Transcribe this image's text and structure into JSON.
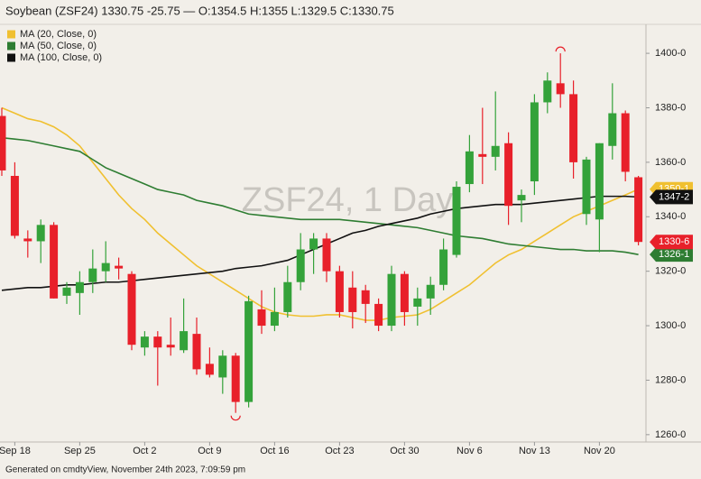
{
  "chart_data": {
    "type": "candlestick",
    "title": "Soybean (ZSF24) 1330.75 -25.75 — O:1354.5 H:1355 L:1329.5 C:1330.75",
    "watermark": "ZSF24, 1 Day",
    "footer": "Generated on cmdtyView, November 24th 2023, 7:09:59 pm",
    "categories": [
      null,
      "Sep 18",
      null,
      null,
      null,
      null,
      "Sep 25",
      null,
      null,
      null,
      null,
      "Oct 2",
      null,
      null,
      null,
      null,
      "Oct 9",
      null,
      null,
      null,
      null,
      "Oct 16",
      null,
      null,
      null,
      null,
      "Oct 23",
      null,
      null,
      null,
      null,
      "Oct 30",
      null,
      null,
      null,
      null,
      "Nov 6",
      null,
      null,
      null,
      null,
      "Nov 13",
      null,
      null,
      null,
      null,
      "Nov 20",
      null,
      null,
      null
    ],
    "open": [
      1377,
      1355,
      1332,
      1331,
      1337,
      1311,
      1312,
      1316,
      1320,
      1322,
      1319,
      1292,
      1296,
      1293,
      1291,
      1297,
      1286,
      1281,
      1289,
      1272,
      1306,
      1300,
      1305,
      1316,
      1328,
      1332,
      1320,
      1314,
      1313,
      1308,
      1300,
      1319,
      1307,
      1310,
      1315,
      1326,
      1352,
      1363,
      1362,
      1367,
      1346,
      1353,
      1382,
      1389,
      1385,
      1341,
      1339,
      1366,
      1378,
      1354.5
    ],
    "high": [
      1380,
      1360,
      1335,
      1339,
      1338,
      1316,
      1320,
      1328,
      1331,
      1325,
      1320,
      1298,
      1298,
      1303,
      1310,
      1303,
      1292,
      1291,
      1290,
      1311,
      1313,
      1314,
      1322,
      1334,
      1334,
      1334,
      1322,
      1320,
      1315,
      1310,
      1322,
      1320,
      1314,
      1318,
      1332,
      1353,
      1370,
      1380,
      1386,
      1371,
      1350,
      1385,
      1393,
      1400,
      1390,
      1362,
      1367,
      1389,
      1379,
      1355
    ],
    "low": [
      1355,
      1332,
      1325,
      1323,
      1310,
      1308,
      1304,
      1312,
      1316,
      1317,
      1291,
      1289,
      1278,
      1289,
      1290,
      1282,
      1281,
      1275,
      1268,
      1270,
      1297,
      1298,
      1303,
      1313,
      1319,
      1316,
      1303,
      1299,
      1301,
      1298,
      1298,
      1300,
      1300,
      1304,
      1313,
      1325,
      1349,
      1352,
      1357,
      1337,
      1338,
      1348,
      1378,
      1380,
      1354,
      1337,
      1327,
      1361,
      1353,
      1329.5
    ],
    "close": [
      1357,
      1333,
      1331,
      1337,
      1310,
      1314,
      1316,
      1321,
      1323,
      1321,
      1293,
      1296,
      1292,
      1292,
      1298,
      1284,
      1282,
      1289,
      1272,
      1309,
      1300,
      1305,
      1316,
      1328,
      1332,
      1320,
      1305,
      1305,
      1308,
      1300,
      1319,
      1305,
      1310,
      1315,
      1328,
      1351,
      1364,
      1362,
      1366,
      1344,
      1348,
      1382,
      1390,
      1385,
      1360,
      1361,
      1367,
      1378,
      1356.5,
      1330.75
    ],
    "last_label": "1330-6",
    "up_color": "#34a23a",
    "down_color": "#e8202a",
    "overlays": [
      {
        "name": "MA (20, Close, 0)",
        "color": "#f0c030",
        "last_label": "1350-1",
        "values": [
          1380,
          1378,
          1376,
          1375,
          1373,
          1370,
          1366,
          1360,
          1354,
          1348,
          1343,
          1339,
          1334,
          1330,
          1326,
          1322,
          1319,
          1316,
          1313,
          1310,
          1307,
          1305,
          1304,
          1303.5,
          1303.5,
          1304,
          1304,
          1303,
          1302,
          1302,
          1303,
          1303.5,
          1304,
          1306,
          1309,
          1312,
          1315,
          1319,
          1323,
          1326,
          1328,
          1331,
          1334,
          1337,
          1340,
          1342,
          1344,
          1346,
          1348,
          1350.125
        ]
      },
      {
        "name": "MA (50, Close, 0)",
        "color": "#2e7d32",
        "last_label": "1326-1",
        "values": [
          1369,
          1368.5,
          1368,
          1367,
          1366,
          1365,
          1364,
          1361,
          1358,
          1356,
          1354,
          1352,
          1350,
          1349,
          1348,
          1346,
          1345,
          1344,
          1342.5,
          1341,
          1340.5,
          1340,
          1339.5,
          1339,
          1339,
          1339,
          1339,
          1338.5,
          1338,
          1337.5,
          1337,
          1336.5,
          1336,
          1335,
          1334,
          1333,
          1332.5,
          1332,
          1331,
          1330,
          1329.5,
          1329,
          1328.5,
          1328,
          1328,
          1327.5,
          1327.5,
          1327.5,
          1327,
          1326.125
        ]
      },
      {
        "name": "MA (100, Close, 0)",
        "color": "#111111",
        "last_label": "1347-2",
        "values": [
          1313,
          1313.5,
          1314,
          1314,
          1314.5,
          1315,
          1315,
          1315.5,
          1316,
          1316,
          1316.5,
          1317,
          1317.5,
          1318,
          1318.5,
          1319,
          1319.5,
          1320,
          1321,
          1321.5,
          1322,
          1323,
          1324,
          1326,
          1328,
          1330,
          1332,
          1334,
          1335,
          1336.5,
          1337.5,
          1338.5,
          1339.5,
          1341,
          1342,
          1343,
          1343.5,
          1344,
          1344.5,
          1344.5,
          1344.5,
          1345,
          1345.5,
          1346,
          1346.5,
          1347,
          1347.5,
          1347.5,
          1347.5,
          1347.25
        ]
      }
    ],
    "ylim": [
      1257.3,
      1410.3
    ],
    "yticks": [
      {
        "value": 1260,
        "label": "1260-0"
      },
      {
        "value": 1280,
        "label": "1280-0"
      },
      {
        "value": 1300,
        "label": "1300-0"
      },
      {
        "value": 1320,
        "label": "1320-0"
      },
      {
        "value": 1340,
        "label": "1340-0"
      },
      {
        "value": 1360,
        "label": "1360-0"
      },
      {
        "value": 1380,
        "label": "1380-0"
      },
      {
        "value": 1400,
        "label": "1400-0"
      }
    ],
    "grid": false
  }
}
